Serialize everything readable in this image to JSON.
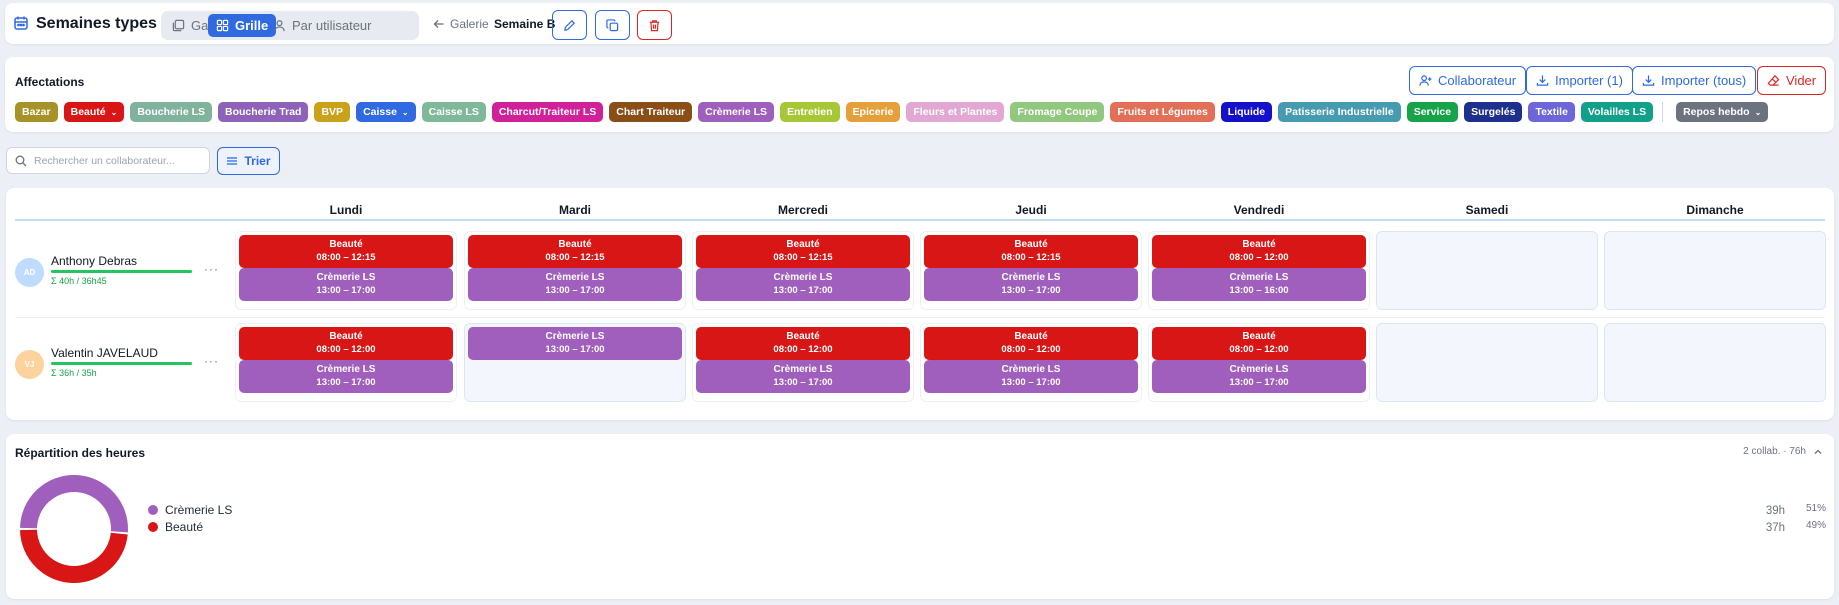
{
  "header": {
    "title": "Semaines types",
    "views": [
      "Galerie",
      "Grille",
      "Par utilisateur"
    ],
    "back_label": "Galerie",
    "week_name": "Semaine B"
  },
  "affectations": {
    "label": "Affectations",
    "buttons": {
      "collaborateur": "Collaborateur",
      "importer_one": "Importer (1)",
      "importer_all": "Importer (tous)",
      "vider": "Vider"
    },
    "chips": [
      {
        "label": "Bazar",
        "color": "#a69226",
        "dropdown": false
      },
      {
        "label": "Beauté",
        "color": "#d81616",
        "dropdown": true
      },
      {
        "label": "Boucherie LS",
        "color": "#80b29c",
        "dropdown": false
      },
      {
        "label": "Boucherie Trad",
        "color": "#8e62b9",
        "dropdown": false
      },
      {
        "label": "BVP",
        "color": "#c9a21a",
        "dropdown": false
      },
      {
        "label": "Caisse",
        "color": "#2f6ae0",
        "dropdown": true
      },
      {
        "label": "Caisse LS",
        "color": "#80b89a",
        "dropdown": false
      },
      {
        "label": "Charcut/Traiteur LS",
        "color": "#d0219a",
        "dropdown": false
      },
      {
        "label": "Chart Traiteur",
        "color": "#8a4f16",
        "dropdown": false
      },
      {
        "label": "Crèmerie LS",
        "color": "#a15fbd",
        "dropdown": false
      },
      {
        "label": "Entretien",
        "color": "#a8c736",
        "dropdown": false
      },
      {
        "label": "Epicerie",
        "color": "#e6a03b",
        "dropdown": false
      },
      {
        "label": "Fleurs et Plantes",
        "color": "#e2a7d3",
        "dropdown": false
      },
      {
        "label": "Fromage Coupe",
        "color": "#92c77f",
        "dropdown": false
      },
      {
        "label": "Fruits et Légumes",
        "color": "#e27058",
        "dropdown": false
      },
      {
        "label": "Liquide",
        "color": "#1510c9",
        "dropdown": false
      },
      {
        "label": "Patisserie Industrielle",
        "color": "#469bb0",
        "dropdown": false
      },
      {
        "label": "Service",
        "color": "#16a34a",
        "dropdown": false
      },
      {
        "label": "Surgelés",
        "color": "#1e2f8c",
        "dropdown": false
      },
      {
        "label": "Textile",
        "color": "#6d66d6",
        "dropdown": false
      },
      {
        "label": "Volailles LS",
        "color": "#13a08a",
        "dropdown": false
      }
    ],
    "repos": {
      "label": "Repos hebdo",
      "color": "#6b7280"
    }
  },
  "search": {
    "placeholder": "Rechercher un collaborateur...",
    "value": ""
  },
  "sort": {
    "label": "Trier"
  },
  "grid": {
    "days": [
      "Lundi",
      "Mardi",
      "Mercredi",
      "Jeudi",
      "Vendredi",
      "Samedi",
      "Dimanche"
    ],
    "employees": [
      {
        "initials": "AD",
        "avatar_color": "#bfdbfe",
        "name": "Anthony Debras",
        "hours": "Σ 40h / 36h45",
        "more": "···",
        "days": [
          [
            {
              "label": "Beauté",
              "time": "08:00 – 12:15",
              "color": "#d81616"
            },
            {
              "label": "Crèmerie LS",
              "time": "13:00 – 17:00",
              "color": "#a15fbd"
            }
          ],
          [
            {
              "label": "Beauté",
              "time": "08:00 – 12:15",
              "color": "#d81616"
            },
            {
              "label": "Crèmerie LS",
              "time": "13:00 – 17:00",
              "color": "#a15fbd"
            }
          ],
          [
            {
              "label": "Beauté",
              "time": "08:00 – 12:15",
              "color": "#d81616"
            },
            {
              "label": "Crèmerie LS",
              "time": "13:00 – 17:00",
              "color": "#a15fbd"
            }
          ],
          [
            {
              "label": "Beauté",
              "time": "08:00 – 12:15",
              "color": "#d81616"
            },
            {
              "label": "Crèmerie LS",
              "time": "13:00 – 17:00",
              "color": "#a15fbd"
            }
          ],
          [
            {
              "label": "Beauté",
              "time": "08:00 – 12:00",
              "color": "#d81616"
            },
            {
              "label": "Crèmerie LS",
              "time": "13:00 – 16:00",
              "color": "#a15fbd"
            }
          ],
          [],
          []
        ]
      },
      {
        "initials": "VJ",
        "avatar_color": "#fcd29d",
        "name": "Valentin JAVELAUD",
        "hours": "Σ 36h / 35h",
        "more": "···",
        "days": [
          [
            {
              "label": "Beauté",
              "time": "08:00 – 12:00",
              "color": "#d81616"
            },
            {
              "label": "Crèmerie LS",
              "time": "13:00 – 17:00",
              "color": "#a15fbd"
            }
          ],
          [
            {
              "label": "Crèmerie LS",
              "time": "13:00 – 17:00",
              "color": "#a15fbd"
            }
          ],
          [
            {
              "label": "Beauté",
              "time": "08:00 – 12:00",
              "color": "#d81616"
            },
            {
              "label": "Crèmerie LS",
              "time": "13:00 – 17:00",
              "color": "#a15fbd"
            }
          ],
          [
            {
              "label": "Beauté",
              "time": "08:00 – 12:00",
              "color": "#d81616"
            },
            {
              "label": "Crèmerie LS",
              "time": "13:00 – 17:00",
              "color": "#a15fbd"
            }
          ],
          [
            {
              "label": "Beauté",
              "time": "08:00 – 12:00",
              "color": "#d81616"
            },
            {
              "label": "Crèmerie LS",
              "time": "13:00 – 17:00",
              "color": "#a15fbd"
            }
          ],
          [],
          []
        ]
      }
    ]
  },
  "repartition": {
    "title": "Répartition des heures",
    "meta": "2 collab. · 76h",
    "items": [
      {
        "label": "Crèmerie LS",
        "hours": "39h",
        "percent": "51%",
        "color": "#a15fbd",
        "share": 0.513
      },
      {
        "label": "Beauté",
        "hours": "37h",
        "percent": "49%",
        "color": "#d81616",
        "share": 0.487
      }
    ]
  }
}
